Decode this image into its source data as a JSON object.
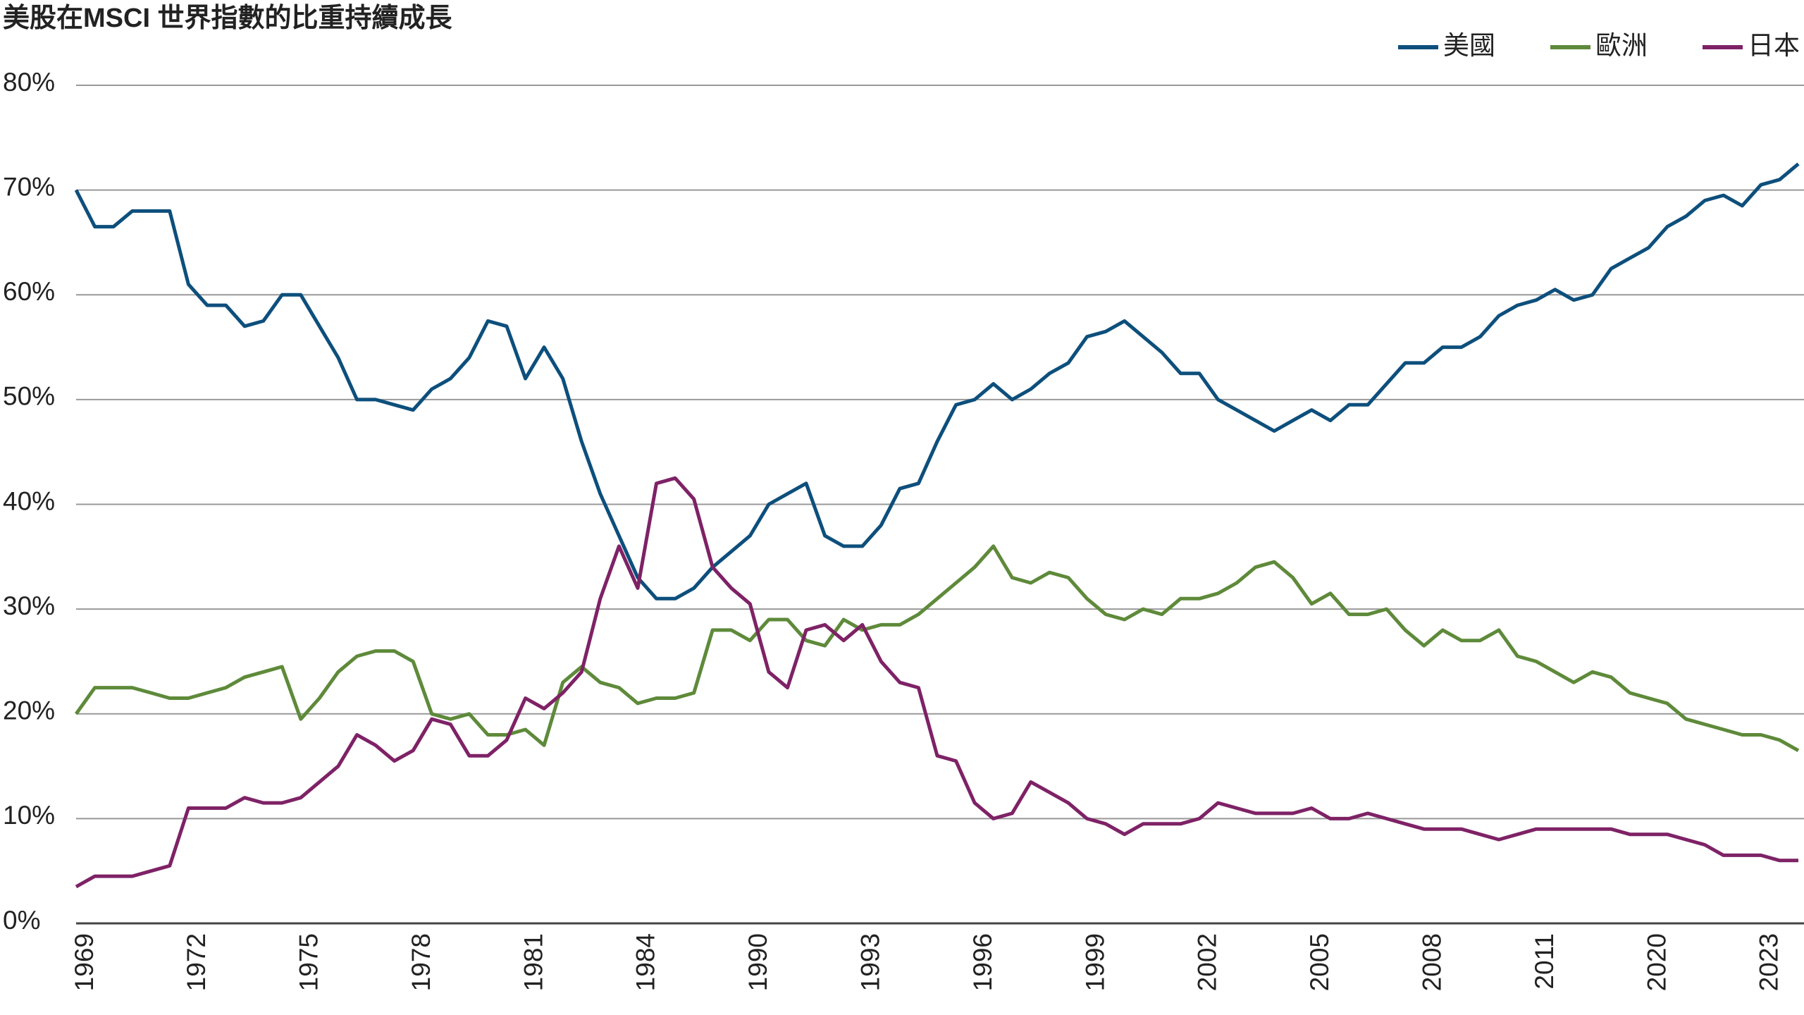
{
  "chart_data": {
    "type": "line",
    "title": "美股在MSCI 世界指數的比重持續成長",
    "categories": [
      "1969",
      null,
      null,
      null,
      null,
      null,
      "1972",
      null,
      null,
      null,
      null,
      null,
      "1975",
      null,
      null,
      null,
      null,
      null,
      "1978",
      null,
      null,
      null,
      null,
      null,
      "1981",
      null,
      null,
      null,
      null,
      null,
      "1984",
      null,
      null,
      null,
      null,
      null,
      "1990",
      null,
      null,
      null,
      null,
      null,
      "1993",
      null,
      null,
      null,
      null,
      null,
      "1996",
      null,
      null,
      null,
      null,
      null,
      "1999",
      null,
      null,
      null,
      null,
      null,
      "2002",
      null,
      null,
      null,
      null,
      null,
      "2005",
      null,
      null,
      null,
      null,
      null,
      "2008",
      null,
      null,
      null,
      null,
      null,
      "2011",
      null,
      null,
      null,
      null,
      null,
      "2020",
      null,
      null,
      null,
      null,
      null,
      "2023",
      null,
      null
    ],
    "series": [
      {
        "name": "美國",
        "color": "#0d4f7c",
        "values": [
          70,
          66.5,
          66.5,
          68,
          68,
          68,
          61,
          59,
          59,
          57,
          57.5,
          60,
          60,
          57,
          54,
          50,
          50,
          49.5,
          49,
          51,
          52,
          54,
          57.5,
          57,
          52,
          55,
          52,
          46,
          41,
          37,
          33,
          31,
          31,
          32,
          34,
          35.5,
          37,
          40,
          41,
          42,
          37,
          36,
          36,
          38,
          41.5,
          42,
          46,
          49.5,
          50,
          51.5,
          50,
          51,
          52.5,
          53.5,
          56,
          56.5,
          57.5,
          56,
          54.5,
          52.5,
          52.5,
          50,
          49,
          48,
          47,
          48,
          49,
          48,
          49.5,
          49.5,
          51.5,
          53.5,
          53.5,
          55,
          55,
          56,
          58,
          59,
          59.5,
          60.5,
          59.5,
          60,
          62.5,
          63.5,
          64.5,
          66.5,
          67.5,
          69,
          69.5,
          68.5,
          70.5,
          71,
          72.5
        ]
      },
      {
        "name": "歐洲",
        "color": "#5e8a3a",
        "values": [
          20,
          22.5,
          22.5,
          22.5,
          22,
          21.5,
          21.5,
          22,
          22.5,
          23.5,
          24,
          24.5,
          19.5,
          21.5,
          24,
          25.5,
          26,
          26,
          25,
          20,
          19.5,
          20,
          18,
          18,
          18.5,
          17,
          23,
          24.5,
          23,
          22.5,
          21,
          21.5,
          21.5,
          22,
          28,
          28,
          27,
          29,
          29,
          27,
          26.5,
          29,
          28,
          28.5,
          28.5,
          29.5,
          31,
          32.5,
          34,
          36,
          33,
          32.5,
          33.5,
          33,
          31,
          29.5,
          29,
          30,
          29.5,
          31,
          31,
          31.5,
          32.5,
          34,
          34.5,
          33,
          30.5,
          31.5,
          29.5,
          29.5,
          30,
          28,
          26.5,
          28,
          27,
          27,
          28,
          25.5,
          25,
          24,
          23,
          24,
          23.5,
          22,
          21.5,
          21,
          19.5,
          19,
          18.5,
          18,
          18,
          17.5,
          16.5
        ]
      },
      {
        "name": "日本",
        "color": "#7e2266",
        "values": [
          3.5,
          4.5,
          4.5,
          4.5,
          5,
          5.5,
          11,
          11,
          11,
          12,
          11.5,
          11.5,
          12,
          13.5,
          15,
          18,
          17,
          15.5,
          16.5,
          19.5,
          19,
          16,
          16,
          17.5,
          21.5,
          20.5,
          22,
          24,
          31,
          36,
          32,
          42,
          42.5,
          40.5,
          34,
          32,
          30.5,
          24,
          22.5,
          28,
          28.5,
          27,
          28.5,
          25,
          23,
          22.5,
          16,
          15.5,
          11.5,
          10,
          10.5,
          13.5,
          12.5,
          11.5,
          10,
          9.5,
          8.5,
          9.5,
          9.5,
          9.5,
          10,
          11.5,
          11,
          10.5,
          10.5,
          10.5,
          11,
          10,
          10,
          10.5,
          10,
          9.5,
          9,
          9,
          9,
          8.5,
          8,
          8.5,
          9,
          9,
          9,
          9,
          9,
          8.5,
          8.5,
          8.5,
          8,
          7.5,
          6.5,
          6.5,
          6.5,
          6,
          6
        ]
      }
    ],
    "ylim": [
      0,
      80
    ],
    "yticks": [
      {
        "value": 0,
        "label": "0%"
      },
      {
        "value": 10,
        "label": "10%"
      },
      {
        "value": 20,
        "label": "20%"
      },
      {
        "value": 30,
        "label": "30%"
      },
      {
        "value": 40,
        "label": "40%"
      },
      {
        "value": 50,
        "label": "50%"
      },
      {
        "value": 60,
        "label": "60%"
      },
      {
        "value": 70,
        "label": "70%"
      },
      {
        "value": 80,
        "label": "80%"
      }
    ],
    "grid": true,
    "legend": "top-right"
  }
}
